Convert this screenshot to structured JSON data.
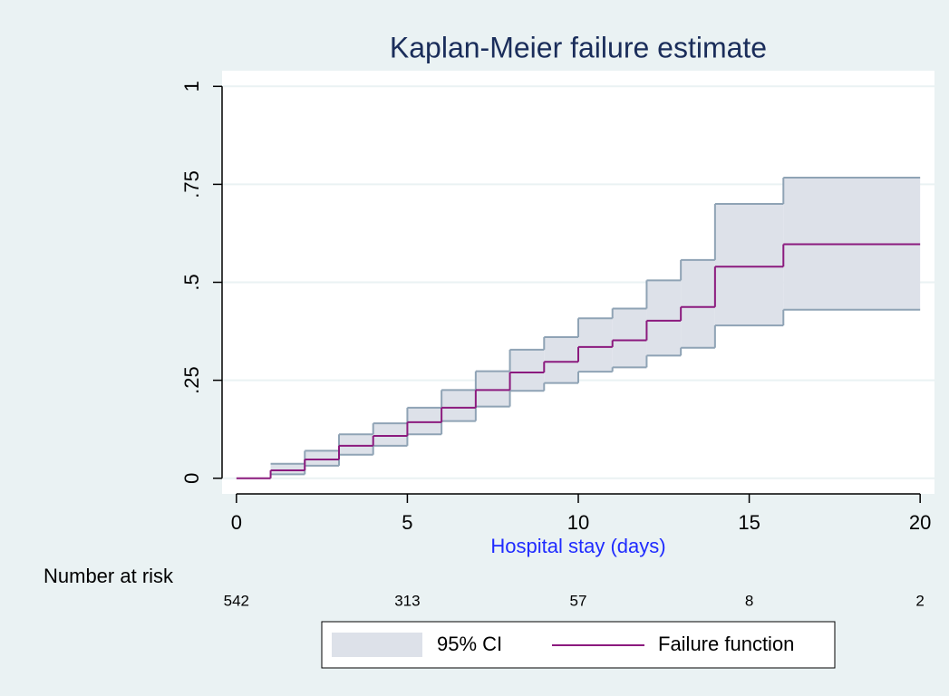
{
  "chart_data": {
    "type": "km-step",
    "title": "Kaplan-Meier failure estimate",
    "x_label": "Hospital stay (days)",
    "x": [
      0,
      1,
      2,
      3,
      4,
      5,
      6,
      7,
      8,
      9,
      10,
      11,
      12,
      13,
      14,
      16,
      20
    ],
    "series": [
      {
        "name": "95% CI",
        "color": "#dde1e9",
        "line_color": "#8fa3b5",
        "lower": [
          null,
          0.01,
          0.032,
          0.06,
          0.083,
          0.112,
          0.146,
          0.183,
          0.223,
          0.243,
          0.272,
          0.283,
          0.313,
          0.333,
          0.39,
          0.43,
          0.43
        ],
        "upper": [
          null,
          0.037,
          0.07,
          0.112,
          0.14,
          0.18,
          0.225,
          0.273,
          0.328,
          0.36,
          0.408,
          0.433,
          0.505,
          0.557,
          0.7,
          0.767,
          0.767
        ]
      },
      {
        "name": "Failure function",
        "color": "#8b1a7e",
        "values": [
          0,
          0.02,
          0.048,
          0.083,
          0.108,
          0.143,
          0.18,
          0.225,
          0.27,
          0.297,
          0.335,
          0.352,
          0.402,
          0.437,
          0.54,
          0.597,
          0.597
        ]
      }
    ],
    "xlim": [
      -0.42,
      20.42
    ],
    "ylim": [
      -0.04,
      1.04
    ],
    "xticks": [
      0,
      5,
      10,
      15,
      20
    ],
    "yticks": [
      0,
      {
        "value": 0.25,
        "label": ".25"
      },
      {
        "value": 0.5,
        "label": ".5"
      },
      {
        "value": 0.75,
        "label": ".75"
      },
      1
    ],
    "grid": true,
    "risk_table": {
      "label": "Number at risk",
      "x": [
        0,
        5,
        10,
        15,
        20
      ],
      "counts": [
        542,
        313,
        57,
        8,
        2
      ]
    }
  }
}
